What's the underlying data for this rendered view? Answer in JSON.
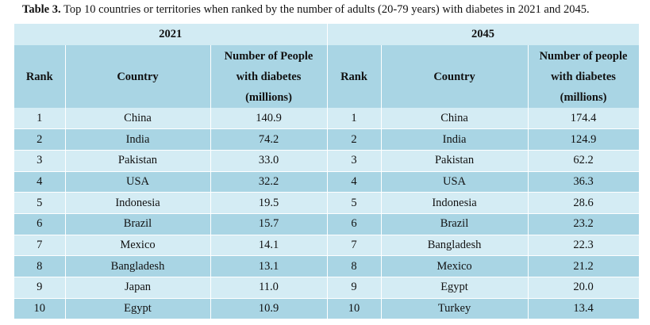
{
  "caption": {
    "label": "Table 3.",
    "text": "Top 10 countries or territories when ranked by the number of adults (20-79 years) with diabetes in 2021 and 2045."
  },
  "table": {
    "years": [
      "2021",
      "2045"
    ],
    "headers": [
      [
        "Rank"
      ],
      [
        "Country"
      ],
      [
        "Number of People",
        "with diabetes",
        "(millions)"
      ],
      [
        "Rank"
      ],
      [
        "Country"
      ],
      [
        "Number of people",
        "with diabetes",
        "(millions)"
      ]
    ],
    "rows": [
      [
        "1",
        "China",
        "140.9",
        "1",
        "China",
        "174.4"
      ],
      [
        "2",
        "India",
        "74.2",
        "2",
        "India",
        "124.9"
      ],
      [
        "3",
        "Pakistan",
        "33.0",
        "3",
        "Pakistan",
        "62.2"
      ],
      [
        "4",
        "USA",
        "32.2",
        "4",
        "USA",
        "36.3"
      ],
      [
        "5",
        "Indonesia",
        "19.5",
        "5",
        "Indonesia",
        "28.6"
      ],
      [
        "6",
        "Brazil",
        "15.7",
        "6",
        "Brazil",
        "23.2"
      ],
      [
        "7",
        "Mexico",
        "14.1",
        "7",
        "Bangladesh",
        "22.3"
      ],
      [
        "8",
        "Bangladesh",
        "13.1",
        "8",
        "Mexico",
        "21.2"
      ],
      [
        "9",
        "Japan",
        "11.0",
        "9",
        "Egypt",
        "20.0"
      ],
      [
        "10",
        "Egypt",
        "10.9",
        "10",
        "Turkey",
        "13.4"
      ]
    ]
  }
}
